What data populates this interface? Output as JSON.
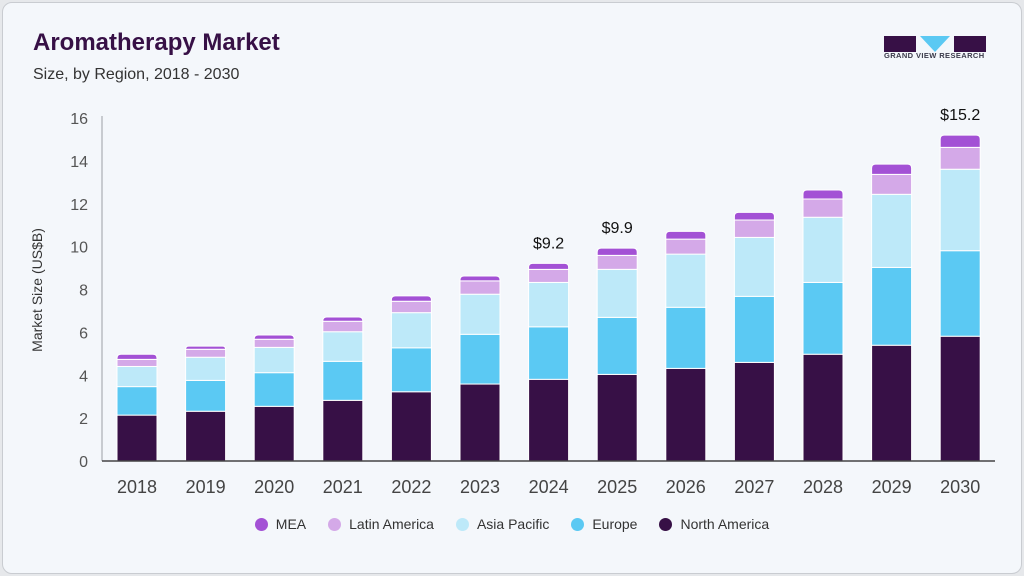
{
  "header": {
    "title": "Aromatherapy Market",
    "subtitle": "Size, by Region, 2018 - 2030"
  },
  "logo": {
    "text": "GRAND VIEW RESEARCH"
  },
  "chart_data": {
    "type": "bar",
    "stacked": true,
    "title": "Aromatherapy Market",
    "subtitle": "Size, by Region, 2018 - 2030",
    "xlabel": "",
    "ylabel": "Market Size (US$B)",
    "ylim": [
      0,
      16
    ],
    "yticks": [
      0,
      2,
      4,
      6,
      8,
      10,
      12,
      14,
      16
    ],
    "grid": false,
    "legend_position": "bottom",
    "categories": [
      "2018",
      "2019",
      "2020",
      "2021",
      "2022",
      "2023",
      "2024",
      "2025",
      "2026",
      "2027",
      "2028",
      "2029",
      "2030"
    ],
    "series": [
      {
        "name": "North America",
        "color": "#371046",
        "values": [
          2.14,
          2.32,
          2.55,
          2.83,
          3.23,
          3.59,
          3.81,
          4.04,
          4.32,
          4.6,
          4.98,
          5.4,
          5.82
        ]
      },
      {
        "name": "Europe",
        "color": "#5bc9f3",
        "values": [
          1.33,
          1.44,
          1.57,
          1.82,
          2.05,
          2.32,
          2.45,
          2.66,
          2.85,
          3.08,
          3.35,
          3.63,
          3.99
        ]
      },
      {
        "name": "Asia Pacific",
        "color": "#bde9f9",
        "values": [
          0.94,
          1.08,
          1.18,
          1.38,
          1.64,
          1.87,
          2.07,
          2.24,
          2.48,
          2.75,
          3.04,
          3.41,
          3.8
        ]
      },
      {
        "name": "Latin America",
        "color": "#d4a9e8",
        "values": [
          0.33,
          0.37,
          0.38,
          0.49,
          0.53,
          0.62,
          0.61,
          0.65,
          0.7,
          0.81,
          0.85,
          0.93,
          1.02
        ]
      },
      {
        "name": "MEA",
        "color": "#a351d5",
        "values": [
          0.24,
          0.15,
          0.2,
          0.2,
          0.25,
          0.23,
          0.28,
          0.34,
          0.36,
          0.36,
          0.42,
          0.48,
          0.57
        ]
      }
    ],
    "annotations": [
      {
        "category": "2024",
        "text": "$9.2"
      },
      {
        "category": "2025",
        "text": "$9.9"
      },
      {
        "category": "2030",
        "text": "$15.2"
      }
    ],
    "legend_order": [
      "MEA",
      "Latin America",
      "Asia Pacific",
      "Europe",
      "North America"
    ]
  }
}
